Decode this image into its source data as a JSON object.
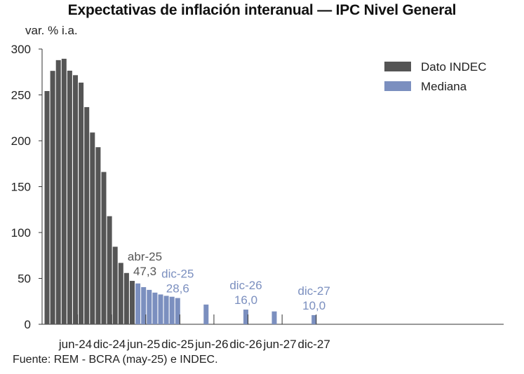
{
  "chart_data": {
    "type": "bar",
    "title": "Expectativas de inflación interanual — IPC Nivel General",
    "ylabel": "var. % i.a.",
    "ylim": [
      0,
      300
    ],
    "yticks": [
      0,
      50,
      100,
      150,
      200,
      250,
      300
    ],
    "grid": false,
    "legend_position": "top-right",
    "colors": {
      "indec": "#555555",
      "mediana": "#7b8fbf",
      "annot_indec": "#555555",
      "annot_mediana": "#7b8fbf"
    },
    "x_tick_labels": [
      "jun-24",
      "dic-24",
      "jun-25",
      "dic-25",
      "jun-26",
      "dic-26",
      "jun-27",
      "dic-27"
    ],
    "x_tick_months": [
      "2024-06",
      "2024-12",
      "2025-06",
      "2025-12",
      "2026-06",
      "2026-12",
      "2027-06",
      "2027-12"
    ],
    "series": [
      {
        "name": "Dato INDEC",
        "color_key": "indec",
        "points": [
          {
            "month": "2024-01",
            "value": 254.2
          },
          {
            "month": "2024-02",
            "value": 276.2
          },
          {
            "month": "2024-03",
            "value": 287.9
          },
          {
            "month": "2024-04",
            "value": 289.4
          },
          {
            "month": "2024-05",
            "value": 276.4
          },
          {
            "month": "2024-06",
            "value": 271.5
          },
          {
            "month": "2024-07",
            "value": 263.4
          },
          {
            "month": "2024-08",
            "value": 236.7
          },
          {
            "month": "2024-09",
            "value": 209.0
          },
          {
            "month": "2024-10",
            "value": 193.0
          },
          {
            "month": "2024-11",
            "value": 166.0
          },
          {
            "month": "2024-12",
            "value": 117.8
          },
          {
            "month": "2025-01",
            "value": 84.5
          },
          {
            "month": "2025-02",
            "value": 66.9
          },
          {
            "month": "2025-03",
            "value": 55.9
          },
          {
            "month": "2025-04",
            "value": 47.3
          }
        ]
      },
      {
        "name": "Mediana",
        "color_key": "mediana",
        "points": [
          {
            "month": "2025-05",
            "value": 44.5
          },
          {
            "month": "2025-06",
            "value": 40.5
          },
          {
            "month": "2025-07",
            "value": 37.5
          },
          {
            "month": "2025-08",
            "value": 34.5
          },
          {
            "month": "2025-09",
            "value": 32.5
          },
          {
            "month": "2025-10",
            "value": 31.0
          },
          {
            "month": "2025-11",
            "value": 30.0
          },
          {
            "month": "2025-12",
            "value": 28.6
          },
          {
            "month": "2026-05",
            "value": 21.5
          },
          {
            "month": "2026-12",
            "value": 16.0
          },
          {
            "month": "2027-05",
            "value": 14.0
          },
          {
            "month": "2027-12",
            "value": 10.0
          }
        ]
      }
    ],
    "annotations": [
      {
        "month": "2025-04",
        "label": "abr-25",
        "value_label": "47,3",
        "color_key": "annot_indec"
      },
      {
        "month": "2025-12",
        "label": "dic-25",
        "value_label": "28,6",
        "color_key": "annot_mediana"
      },
      {
        "month": "2026-12",
        "label": "dic-26",
        "value_label": "16,0",
        "color_key": "annot_mediana"
      },
      {
        "month": "2027-12",
        "label": "dic-27",
        "value_label": "10,0",
        "color_key": "annot_mediana"
      }
    ]
  },
  "source": "Fuente: REM - BCRA (may-25) e INDEC."
}
